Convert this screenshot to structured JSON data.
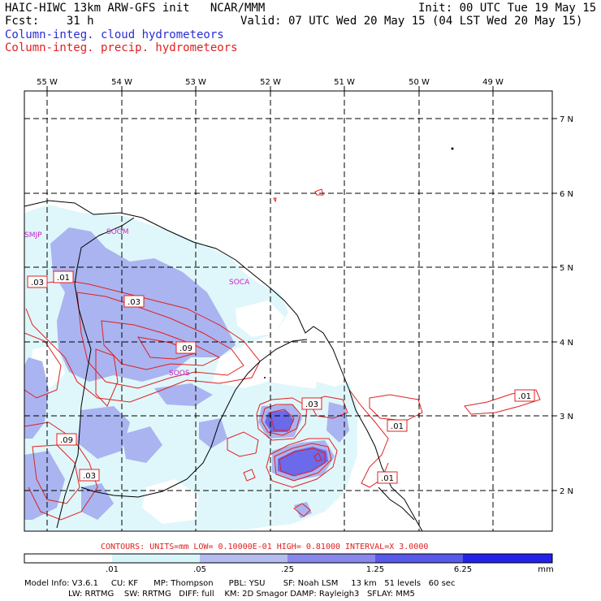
{
  "header": {
    "line1_left": "HAIC-HIWC 13km ARW-GFS init   NCAR/MMM",
    "line1_right": "Init: 00 UTC Tue 19 May 15",
    "line2_left": "Fcst:    31 h",
    "line2_right": "Valid: 07 UTC Wed 20 May 15 (04 LST Wed 20 May 15)",
    "legend_cloud": "Column-integ. cloud hydrometeors",
    "legend_precip": "Column-integ. precip. hydrometeors"
  },
  "map": {
    "lon_labels": [
      "55 W",
      "54 W",
      "53 W",
      "52 W",
      "51 W",
      "50 W",
      "49 W"
    ],
    "lat_labels": [
      "7 N",
      "6 N",
      "5 N",
      "4 N",
      "3 N",
      "2 N"
    ],
    "stations": [
      "SMJP",
      "SOGM",
      "SOCA",
      "SOOS"
    ],
    "contour_labels": [
      ".03",
      ".01",
      ".03",
      ".09",
      ".03",
      ".01",
      ".01",
      ".09",
      ".03",
      ".01"
    ],
    "colors": {
      "cloud_light": "#dff7fa",
      "cloud_mid": "#aab4f0",
      "cloud_dark": "#6a6aea",
      "precip_contour": "#e02020",
      "coastline": "#000000",
      "station": "#cc22cc"
    }
  },
  "footer": {
    "contours_line": "CONTOURS:  UNITS=mm  LOW= 0.10000E-01  HIGH= 0.81000      INTERVAL=X  3.0000",
    "colorbar_ticks": [
      ".01",
      ".05",
      ".25",
      "1.25",
      "6.25"
    ],
    "colorbar_unit": "mm",
    "colorbar_colors": [
      "#ffffff",
      "#d8f6fa",
      "#b4bcf0",
      "#8888ec",
      "#5858ea",
      "#2222e8"
    ],
    "model_info_1": "Model Info: V3.6.1     CU: KF      MP: Thompson      PBL: YSU       SF: Noah LSM     13 km   51 levels   60 sec",
    "model_info_2": "                 LW: RRTMG    SW: RRTMG   DIFF: full    KM: 2D Smagor DAMP: Rayleigh3   SFLAY: MM5"
  }
}
